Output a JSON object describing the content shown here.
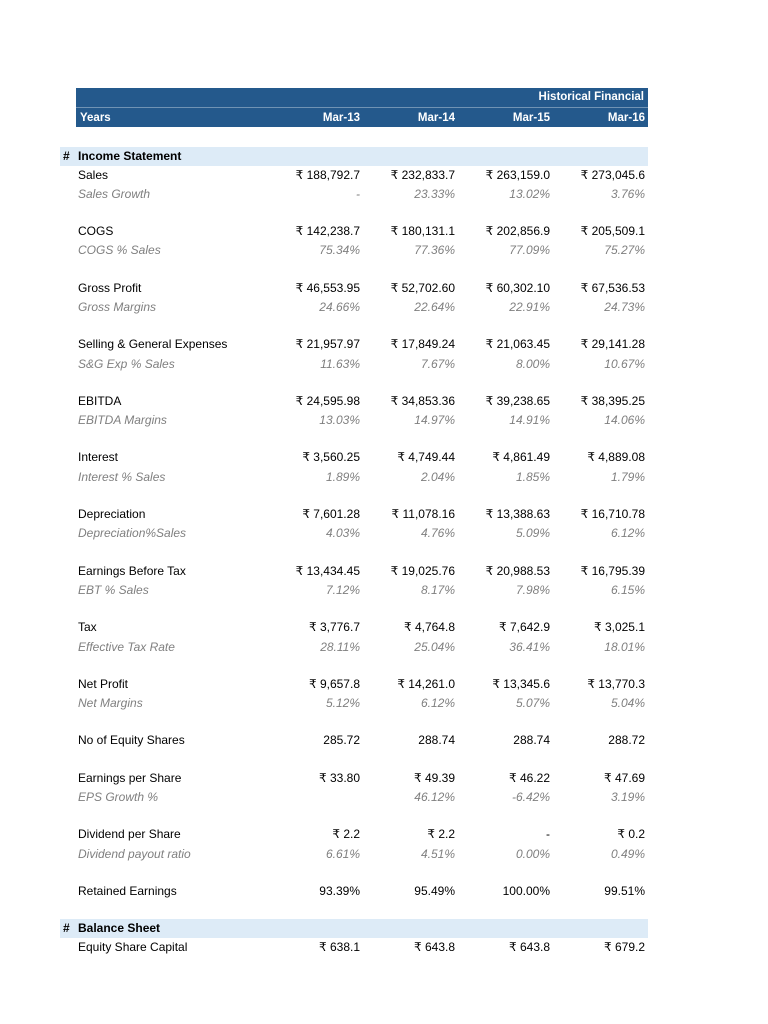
{
  "colors": {
    "header_bg": "#24598C",
    "header_text": "#FFFFFF",
    "section_bg": "#DDEBF7",
    "sub_text": "#7F7F7F",
    "text": "#000000"
  },
  "header": {
    "title": "Historical Financial",
    "years_label": "Years",
    "columns": [
      "Mar-13",
      "Mar-14",
      "Mar-15",
      "Mar-16"
    ]
  },
  "table": {
    "rows": [
      {
        "type": "section",
        "marker": "#",
        "label": "Income Statement"
      },
      {
        "type": "data",
        "label": "Sales",
        "values": [
          "₹ 188,792.7",
          "₹ 232,833.7",
          "₹ 263,159.0",
          "₹ 273,045.6"
        ]
      },
      {
        "type": "sub",
        "label": "Sales Growth",
        "values": [
          "-",
          "23.33%",
          "13.02%",
          "3.76%"
        ]
      },
      {
        "type": "spacer"
      },
      {
        "type": "data",
        "label": "COGS",
        "values": [
          "₹ 142,238.7",
          "₹ 180,131.1",
          "₹ 202,856.9",
          "₹ 205,509.1"
        ]
      },
      {
        "type": "sub",
        "label": "COGS % Sales",
        "values": [
          "75.34%",
          "77.36%",
          "77.09%",
          "75.27%"
        ]
      },
      {
        "type": "spacer"
      },
      {
        "type": "data",
        "label": "Gross Profit",
        "values": [
          "₹ 46,553.95",
          "₹ 52,702.60",
          "₹ 60,302.10",
          "₹ 67,536.53"
        ]
      },
      {
        "type": "sub",
        "label": "Gross Margins",
        "values": [
          "24.66%",
          "22.64%",
          "22.91%",
          "24.73%"
        ]
      },
      {
        "type": "spacer"
      },
      {
        "type": "data",
        "label": "Selling & General Expenses",
        "values": [
          "₹ 21,957.97",
          "₹ 17,849.24",
          "₹ 21,063.45",
          "₹ 29,141.28"
        ]
      },
      {
        "type": "sub",
        "label": "S&G Exp % Sales",
        "values": [
          "11.63%",
          "7.67%",
          "8.00%",
          "10.67%"
        ]
      },
      {
        "type": "spacer"
      },
      {
        "type": "data",
        "label": "EBITDA",
        "values": [
          "₹ 24,595.98",
          "₹ 34,853.36",
          "₹ 39,238.65",
          "₹ 38,395.25"
        ]
      },
      {
        "type": "sub",
        "label": "EBITDA Margins",
        "values": [
          "13.03%",
          "14.97%",
          "14.91%",
          "14.06%"
        ]
      },
      {
        "type": "spacer"
      },
      {
        "type": "data",
        "label": "Interest",
        "values": [
          "₹ 3,560.25",
          "₹ 4,749.44",
          "₹ 4,861.49",
          "₹ 4,889.08"
        ]
      },
      {
        "type": "sub",
        "label": "Interest % Sales",
        "values": [
          "1.89%",
          "2.04%",
          "1.85%",
          "1.79%"
        ]
      },
      {
        "type": "spacer"
      },
      {
        "type": "data",
        "label": "Depreciation",
        "values": [
          "₹ 7,601.28",
          "₹ 11,078.16",
          "₹ 13,388.63",
          "₹ 16,710.78"
        ]
      },
      {
        "type": "sub",
        "label": "Depreciation%Sales",
        "values": [
          "4.03%",
          "4.76%",
          "5.09%",
          "6.12%"
        ]
      },
      {
        "type": "spacer"
      },
      {
        "type": "data",
        "label": "Earnings Before Tax",
        "values": [
          "₹ 13,434.45",
          "₹ 19,025.76",
          "₹ 20,988.53",
          "₹ 16,795.39"
        ]
      },
      {
        "type": "sub",
        "label": "EBT % Sales",
        "values": [
          "7.12%",
          "8.17%",
          "7.98%",
          "6.15%"
        ]
      },
      {
        "type": "spacer"
      },
      {
        "type": "data",
        "label": "Tax",
        "values": [
          "₹ 3,776.7",
          "₹ 4,764.8",
          "₹ 7,642.9",
          "₹ 3,025.1"
        ]
      },
      {
        "type": "sub",
        "label": "Effective Tax Rate",
        "values": [
          "28.11%",
          "25.04%",
          "36.41%",
          "18.01%"
        ]
      },
      {
        "type": "spacer"
      },
      {
        "type": "data",
        "label": "Net Profit",
        "values": [
          "₹ 9,657.8",
          "₹ 14,261.0",
          "₹ 13,345.6",
          "₹ 13,770.3"
        ]
      },
      {
        "type": "sub",
        "label": "Net Margins",
        "values": [
          "5.12%",
          "6.12%",
          "5.07%",
          "5.04%"
        ]
      },
      {
        "type": "spacer"
      },
      {
        "type": "data",
        "label": "No of Equity Shares",
        "values": [
          "285.72",
          "288.74",
          "288.74",
          "288.72"
        ]
      },
      {
        "type": "spacer"
      },
      {
        "type": "data",
        "label": "Earnings per Share",
        "values": [
          "₹ 33.80",
          "₹ 49.39",
          "₹ 46.22",
          "₹ 47.69"
        ]
      },
      {
        "type": "sub",
        "label": "EPS Growth %",
        "values": [
          "",
          "46.12%",
          "-6.42%",
          "3.19%"
        ]
      },
      {
        "type": "spacer"
      },
      {
        "type": "data",
        "label": "Dividend per Share",
        "values": [
          "₹ 2.2",
          "₹ 2.2",
          "-",
          "₹ 0.2"
        ]
      },
      {
        "type": "sub",
        "label": "Dividend payout ratio",
        "values": [
          "6.61%",
          "4.51%",
          "0.00%",
          "0.49%"
        ]
      },
      {
        "type": "spacer"
      },
      {
        "type": "data",
        "label": "Retained Earnings",
        "values": [
          "93.39%",
          "95.49%",
          "100.00%",
          "99.51%"
        ]
      },
      {
        "type": "spacer"
      },
      {
        "type": "section",
        "marker": "#",
        "label": "Balance Sheet"
      },
      {
        "type": "data",
        "label": "Equity Share Capital",
        "values": [
          "₹ 638.1",
          "₹ 643.8",
          "₹ 643.8",
          "₹ 679.2"
        ]
      }
    ]
  }
}
